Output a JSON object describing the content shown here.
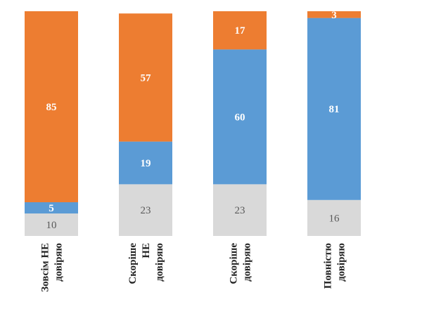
{
  "chart_data": {
    "type": "bar",
    "stacked": true,
    "orientation": "vertical",
    "categories": [
      [
        "Зовсім НЕ",
        "довіряю"
      ],
      [
        "Скоріше",
        "НЕ",
        "довіряю"
      ],
      [
        "Скоріше",
        "довіряю"
      ],
      [
        "Повністю",
        "довіряю"
      ]
    ],
    "series": [
      {
        "color": "#d9d9d9",
        "label_color": "#595959",
        "label_weight": "normal",
        "values": [
          10,
          23,
          23,
          16
        ]
      },
      {
        "color": "#5b9bd5",
        "label_color": "#ffffff",
        "label_weight": "bold",
        "values": [
          5,
          19,
          60,
          81
        ]
      },
      {
        "color": "#ed7d31",
        "label_color": "#ffffff",
        "label_weight": "bold",
        "values": [
          85,
          57,
          17,
          3
        ]
      }
    ],
    "ylim": [
      0,
      100
    ],
    "grid": false,
    "legend": "none",
    "title": "",
    "xlabel": "",
    "ylabel": ""
  }
}
